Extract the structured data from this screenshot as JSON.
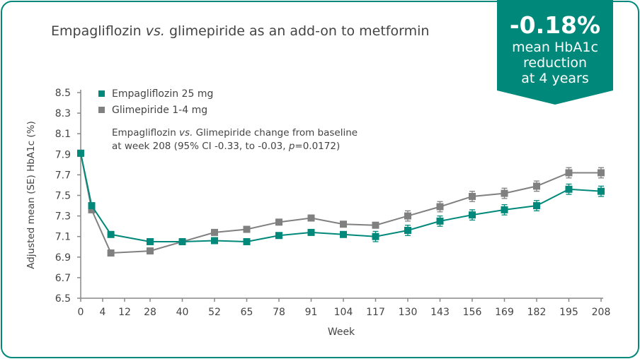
{
  "title": {
    "pre": "Empagliflozin ",
    "italic": "vs.",
    "post": " glimepiride as an add-on to metformin"
  },
  "banner": {
    "value": "-0.18%",
    "line1": "mean HbA1c",
    "line2": "reduction",
    "line3": "at 4 years"
  },
  "colors": {
    "accent": "#00897a",
    "empagliflozin": "#00897a",
    "glimepiride": "#808080",
    "text": "#444444"
  },
  "annotation": {
    "line1_pre": "Empagliflozin ",
    "line1_italic": "vs.",
    "line1_post": " Glimepiride change from baseline",
    "line2_pre": "at week 208 (95% CI -0.33, to -0.03, ",
    "line2_italic": "p",
    "line2_post": "=0.0172)"
  },
  "chart_data": {
    "type": "line",
    "xlabel": "Week",
    "ylabel": "Adjusted mean (SE) HbA1c (%)",
    "ylim": [
      6.5,
      8.5
    ],
    "yticks": [
      "6.5",
      "6.7",
      "6.9",
      "7.1",
      "7.3",
      "7.5",
      "7.7",
      "7.9",
      "8.1",
      "8.3",
      "8.5"
    ],
    "xticks": [
      0,
      4,
      12,
      28,
      40,
      52,
      65,
      78,
      91,
      104,
      117,
      130,
      143,
      156,
      169,
      182,
      195,
      208
    ],
    "legend": "top-left",
    "grid": false,
    "series": [
      {
        "name": "Empagliflozin 25 mg",
        "color": "#00897a",
        "x": [
          0,
          2,
          7,
          28,
          40,
          52,
          65,
          78,
          91,
          104,
          117,
          130,
          143,
          156,
          169,
          182,
          195,
          208
        ],
        "values": [
          7.91,
          7.4,
          7.12,
          7.05,
          7.05,
          7.06,
          7.05,
          7.11,
          7.14,
          7.12,
          7.1,
          7.16,
          7.25,
          7.31,
          7.36,
          7.4,
          7.56,
          7.54
        ],
        "se": [
          0,
          0,
          0,
          0,
          0,
          0,
          0,
          0,
          0,
          0,
          0.05,
          0.05,
          0.05,
          0.05,
          0.05,
          0.05,
          0.05,
          0.05
        ]
      },
      {
        "name": "Glimepiride 1-4 mg",
        "color": "#808080",
        "x": [
          0,
          2,
          7,
          28,
          40,
          52,
          65,
          78,
          91,
          104,
          117,
          130,
          143,
          156,
          169,
          182,
          195,
          208
        ],
        "values": [
          7.91,
          7.36,
          6.94,
          6.96,
          7.05,
          7.14,
          7.17,
          7.24,
          7.28,
          7.22,
          7.21,
          7.3,
          7.39,
          7.49,
          7.52,
          7.59,
          7.72,
          7.72
        ],
        "se": [
          0,
          0,
          0,
          0,
          0,
          0,
          0,
          0,
          0,
          0,
          0,
          0.05,
          0.05,
          0.05,
          0.05,
          0.05,
          0.05,
          0.05
        ]
      }
    ]
  }
}
